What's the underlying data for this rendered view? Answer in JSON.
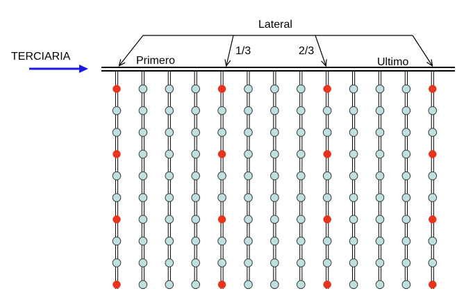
{
  "labels": {
    "terciaria": "TERCIARIA",
    "lateral": "Lateral",
    "primero": "Primero",
    "one_third": "1/3",
    "two_thirds": "2/3",
    "ultimo": "Ultimo"
  },
  "grid": {
    "columns": 13,
    "rows": 10,
    "sampled_columns": [
      1,
      5,
      9,
      13
    ],
    "sampled_rows": [
      1,
      4,
      7,
      10
    ]
  },
  "colors": {
    "sampled_point": "#e8341c",
    "regular_point": "#bfe0e0",
    "point_stroke": "#3a3a3a",
    "inflow_arrow": "#1a1ae6",
    "line": "#000000"
  }
}
